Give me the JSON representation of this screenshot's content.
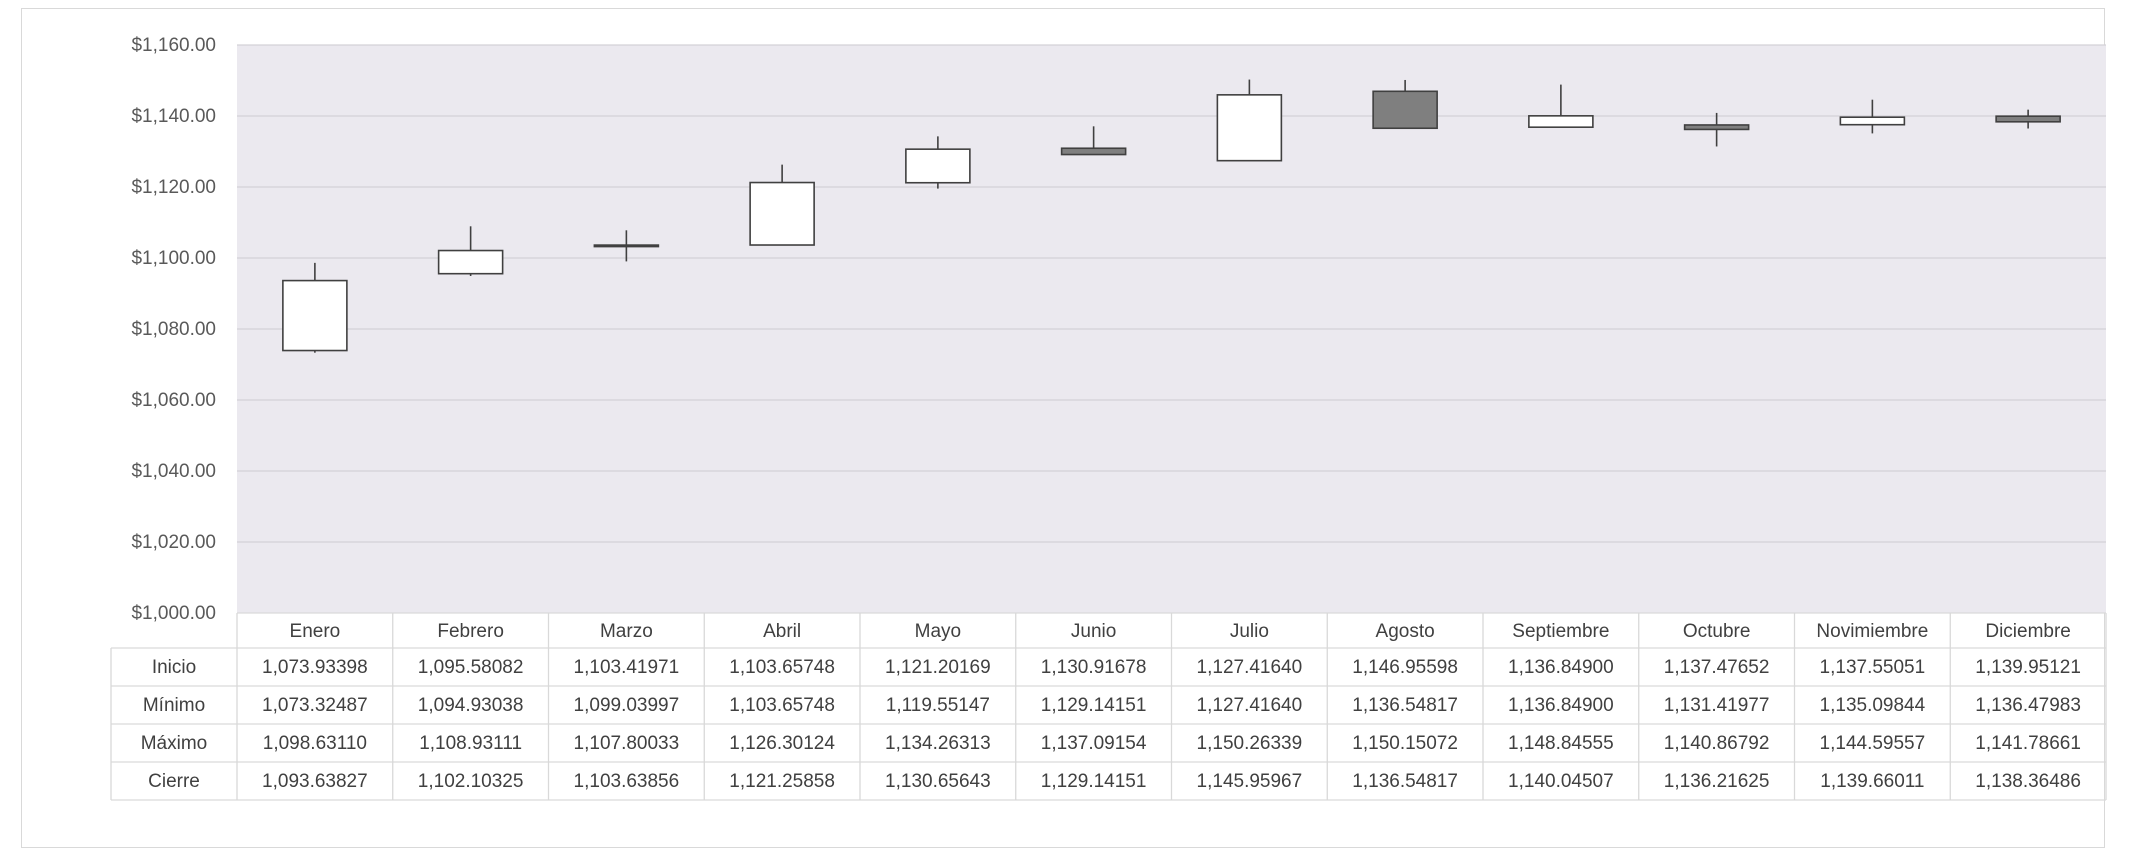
{
  "chart_data": {
    "type": "candlestick",
    "categories": [
      "Enero",
      "Febrero",
      "Marzo",
      "Abril",
      "Mayo",
      "Junio",
      "Julio",
      "Agosto",
      "Septiembre",
      "Octubre",
      "Novimiembre",
      "Diciembre"
    ],
    "series": [
      {
        "name": "Inicio",
        "values": [
          1073.93398,
          1095.58082,
          1103.41971,
          1103.65748,
          1121.20169,
          1130.91678,
          1127.4164,
          1146.95598,
          1136.849,
          1137.47652,
          1137.55051,
          1139.95121
        ]
      },
      {
        "name": "Mínimo",
        "values": [
          1073.32487,
          1094.93038,
          1099.03997,
          1103.65748,
          1119.55147,
          1129.14151,
          1127.4164,
          1136.54817,
          1136.849,
          1131.41977,
          1135.09844,
          1136.47983
        ]
      },
      {
        "name": "Máximo",
        "values": [
          1098.6311,
          1108.93111,
          1107.80033,
          1126.30124,
          1134.26313,
          1137.09154,
          1150.26339,
          1150.15072,
          1148.84555,
          1140.86792,
          1144.59557,
          1141.78661
        ]
      },
      {
        "name": "Cierre",
        "values": [
          1093.63827,
          1102.10325,
          1103.63856,
          1121.25858,
          1130.65643,
          1129.14151,
          1145.95967,
          1136.54817,
          1140.04507,
          1136.21625,
          1139.66011,
          1138.36486
        ]
      }
    ],
    "table_rows": [
      {
        "label": "Inicio",
        "cells": [
          "1,073.93398",
          "1,095.58082",
          "1,103.41971",
          "1,103.65748",
          "1,121.20169",
          "1,130.91678",
          "1,127.41640",
          "1,146.95598",
          "1,136.84900",
          "1,137.47652",
          "1,137.55051",
          "1,139.95121"
        ]
      },
      {
        "label": "Mínimo",
        "cells": [
          "1,073.32487",
          "1,094.93038",
          "1,099.03997",
          "1,103.65748",
          "1,119.55147",
          "1,129.14151",
          "1,127.41640",
          "1,136.54817",
          "1,136.84900",
          "1,131.41977",
          "1,135.09844",
          "1,136.47983"
        ]
      },
      {
        "label": "Máximo",
        "cells": [
          "1,098.63110",
          "1,108.93111",
          "1,107.80033",
          "1,126.30124",
          "1,134.26313",
          "1,137.09154",
          "1,150.26339",
          "1,150.15072",
          "1,148.84555",
          "1,140.86792",
          "1,144.59557",
          "1,141.78661"
        ]
      },
      {
        "label": "Cierre",
        "cells": [
          "1,093.63827",
          "1,102.10325",
          "1,103.63856",
          "1,121.25858",
          "1,130.65643",
          "1,129.14151",
          "1,145.95967",
          "1,136.54817",
          "1,140.04507",
          "1,136.21625",
          "1,139.66011",
          "1,138.36486"
        ]
      }
    ],
    "ylim": [
      1000,
      1160
    ],
    "y_ticks": [
      "$1,000.00",
      "$1,020.00",
      "$1,040.00",
      "$1,060.00",
      "$1,080.00",
      "$1,100.00",
      "$1,120.00",
      "$1,140.00",
      "$1,160.00"
    ],
    "y_tick_values": [
      1000,
      1020,
      1040,
      1060,
      1080,
      1100,
      1120,
      1140,
      1160
    ],
    "grid": true,
    "legend": "data-table",
    "colors": {
      "plot_background": "#ebe9ef",
      "gridline": "#d4d2d8",
      "up_candle": "#ffffff",
      "down_candle": "#7f7f7f",
      "outline": "#404040",
      "table_border": "#d9d9d9"
    }
  }
}
